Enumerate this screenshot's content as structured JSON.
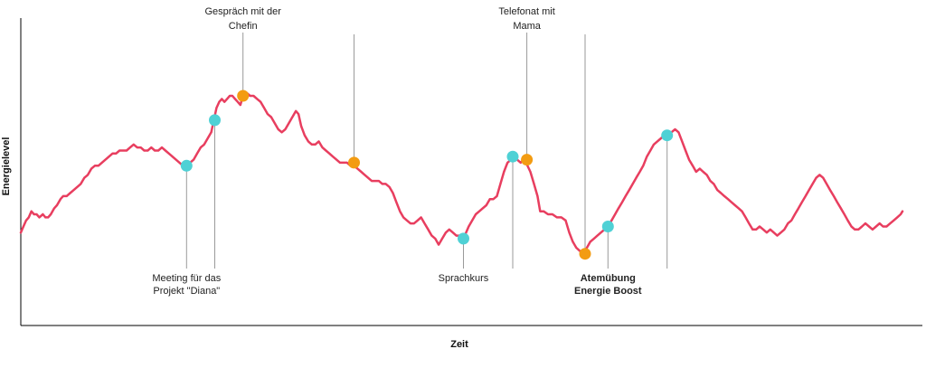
{
  "chart_data": {
    "type": "line",
    "title": "",
    "xlabel": "Zeit",
    "ylabel": "Energielevel",
    "xlim": [
      0,
      100
    ],
    "ylim": [
      0,
      100
    ],
    "grid": false,
    "series": [
      {
        "color": "#e83e5f",
        "points": [
          [
            0.0,
            30
          ],
          [
            0.3,
            32
          ],
          [
            0.6,
            34
          ],
          [
            0.9,
            35
          ],
          [
            1.2,
            37
          ],
          [
            1.5,
            36
          ],
          [
            1.8,
            36
          ],
          [
            2.1,
            35
          ],
          [
            2.5,
            36
          ],
          [
            2.8,
            35
          ],
          [
            3.1,
            35
          ],
          [
            3.4,
            36
          ],
          [
            3.8,
            38
          ],
          [
            4.1,
            39
          ],
          [
            4.5,
            41
          ],
          [
            4.8,
            42
          ],
          [
            5.2,
            42
          ],
          [
            5.6,
            43
          ],
          [
            6.0,
            44
          ],
          [
            6.4,
            45
          ],
          [
            6.8,
            46
          ],
          [
            7.2,
            48
          ],
          [
            7.6,
            49
          ],
          [
            8.0,
            51
          ],
          [
            8.4,
            52
          ],
          [
            8.8,
            52
          ],
          [
            9.2,
            53
          ],
          [
            9.6,
            54
          ],
          [
            10.0,
            55
          ],
          [
            10.4,
            56
          ],
          [
            10.8,
            56
          ],
          [
            11.2,
            57
          ],
          [
            11.6,
            57
          ],
          [
            12.0,
            57
          ],
          [
            12.4,
            58
          ],
          [
            12.8,
            59
          ],
          [
            13.2,
            58
          ],
          [
            13.6,
            58
          ],
          [
            14.0,
            57
          ],
          [
            14.4,
            57
          ],
          [
            14.8,
            58
          ],
          [
            15.2,
            57
          ],
          [
            15.6,
            57
          ],
          [
            16.0,
            58
          ],
          [
            16.4,
            57
          ],
          [
            16.8,
            56
          ],
          [
            17.2,
            55
          ],
          [
            17.6,
            54
          ],
          [
            18.0,
            53
          ],
          [
            18.4,
            52
          ],
          [
            18.8,
            52
          ],
          [
            19.2,
            53
          ],
          [
            19.6,
            54
          ],
          [
            20.0,
            56
          ],
          [
            20.4,
            58
          ],
          [
            20.8,
            59
          ],
          [
            21.2,
            61
          ],
          [
            21.6,
            63
          ],
          [
            21.9,
            67
          ],
          [
            22.2,
            71
          ],
          [
            22.5,
            73
          ],
          [
            22.8,
            74
          ],
          [
            23.1,
            73
          ],
          [
            23.4,
            74
          ],
          [
            23.7,
            75
          ],
          [
            24.0,
            75
          ],
          [
            24.3,
            74
          ],
          [
            24.6,
            73
          ],
          [
            24.9,
            72
          ],
          [
            25.2,
            75
          ],
          [
            25.6,
            76
          ],
          [
            26.0,
            75
          ],
          [
            26.4,
            75
          ],
          [
            26.8,
            74
          ],
          [
            27.2,
            73
          ],
          [
            27.6,
            71
          ],
          [
            28.0,
            69
          ],
          [
            28.4,
            68
          ],
          [
            28.8,
            66
          ],
          [
            29.2,
            64
          ],
          [
            29.6,
            63
          ],
          [
            30.0,
            64
          ],
          [
            30.4,
            66
          ],
          [
            30.8,
            68
          ],
          [
            31.2,
            70
          ],
          [
            31.5,
            69
          ],
          [
            31.8,
            65
          ],
          [
            32.2,
            62
          ],
          [
            32.6,
            60
          ],
          [
            33.0,
            59
          ],
          [
            33.4,
            59
          ],
          [
            33.8,
            60
          ],
          [
            34.2,
            58
          ],
          [
            34.6,
            57
          ],
          [
            35.0,
            56
          ],
          [
            35.4,
            55
          ],
          [
            35.8,
            54
          ],
          [
            36.2,
            53
          ],
          [
            36.6,
            53
          ],
          [
            37.0,
            53
          ],
          [
            37.4,
            52
          ],
          [
            37.8,
            52
          ],
          [
            38.2,
            51
          ],
          [
            38.6,
            50
          ],
          [
            39.0,
            49
          ],
          [
            39.4,
            48
          ],
          [
            39.8,
            47
          ],
          [
            40.2,
            47
          ],
          [
            40.6,
            47
          ],
          [
            41.0,
            46
          ],
          [
            41.4,
            46
          ],
          [
            41.8,
            45
          ],
          [
            42.2,
            43
          ],
          [
            42.6,
            40
          ],
          [
            43.0,
            37
          ],
          [
            43.4,
            35
          ],
          [
            43.8,
            34
          ],
          [
            44.2,
            33
          ],
          [
            44.6,
            33
          ],
          [
            45.0,
            34
          ],
          [
            45.4,
            35
          ],
          [
            45.8,
            33
          ],
          [
            46.2,
            31
          ],
          [
            46.6,
            29
          ],
          [
            47.0,
            28
          ],
          [
            47.4,
            26
          ],
          [
            47.8,
            28
          ],
          [
            48.2,
            30
          ],
          [
            48.6,
            31
          ],
          [
            49.0,
            30
          ],
          [
            49.4,
            29
          ],
          [
            49.8,
            29
          ],
          [
            50.2,
            28
          ],
          [
            50.5,
            30
          ],
          [
            50.8,
            32
          ],
          [
            51.2,
            34
          ],
          [
            51.6,
            36
          ],
          [
            52.0,
            37
          ],
          [
            52.4,
            38
          ],
          [
            52.8,
            39
          ],
          [
            53.2,
            41
          ],
          [
            53.6,
            41
          ],
          [
            54.0,
            42
          ],
          [
            54.4,
            46
          ],
          [
            54.8,
            50
          ],
          [
            55.2,
            53
          ],
          [
            55.6,
            54
          ],
          [
            55.9,
            55
          ],
          [
            56.3,
            54
          ],
          [
            56.7,
            53
          ],
          [
            57.0,
            54
          ],
          [
            57.3,
            53
          ],
          [
            57.8,
            50
          ],
          [
            58.2,
            46
          ],
          [
            58.6,
            42
          ],
          [
            58.9,
            37
          ],
          [
            59.3,
            37
          ],
          [
            59.8,
            36
          ],
          [
            60.3,
            36
          ],
          [
            60.8,
            35
          ],
          [
            61.3,
            35
          ],
          [
            61.8,
            34
          ],
          [
            62.2,
            30
          ],
          [
            62.6,
            27
          ],
          [
            63.0,
            25
          ],
          [
            63.4,
            24
          ],
          [
            63.8,
            23
          ],
          [
            64.2,
            25
          ],
          [
            64.6,
            27
          ],
          [
            65.0,
            28
          ],
          [
            65.4,
            29
          ],
          [
            65.8,
            30
          ],
          [
            66.2,
            31
          ],
          [
            66.6,
            32
          ],
          [
            67.0,
            34
          ],
          [
            67.4,
            36
          ],
          [
            67.8,
            38
          ],
          [
            68.2,
            40
          ],
          [
            68.6,
            42
          ],
          [
            69.0,
            44
          ],
          [
            69.4,
            46
          ],
          [
            69.8,
            48
          ],
          [
            70.2,
            50
          ],
          [
            70.6,
            52
          ],
          [
            71.0,
            55
          ],
          [
            71.4,
            57
          ],
          [
            71.8,
            59
          ],
          [
            72.2,
            60
          ],
          [
            72.6,
            61
          ],
          [
            73.0,
            62
          ],
          [
            73.4,
            63
          ],
          [
            73.8,
            63
          ],
          [
            74.2,
            64
          ],
          [
            74.6,
            63
          ],
          [
            75.0,
            60
          ],
          [
            75.4,
            57
          ],
          [
            75.8,
            54
          ],
          [
            76.2,
            52
          ],
          [
            76.6,
            50
          ],
          [
            77.0,
            51
          ],
          [
            77.4,
            50
          ],
          [
            77.8,
            49
          ],
          [
            78.2,
            47
          ],
          [
            78.6,
            46
          ],
          [
            79.0,
            44
          ],
          [
            79.4,
            43
          ],
          [
            79.8,
            42
          ],
          [
            80.2,
            41
          ],
          [
            80.6,
            40
          ],
          [
            81.0,
            39
          ],
          [
            81.4,
            38
          ],
          [
            81.8,
            37
          ],
          [
            82.2,
            35
          ],
          [
            82.6,
            33
          ],
          [
            83.0,
            31
          ],
          [
            83.4,
            31
          ],
          [
            83.8,
            32
          ],
          [
            84.2,
            31
          ],
          [
            84.6,
            30
          ],
          [
            85.0,
            31
          ],
          [
            85.4,
            30
          ],
          [
            85.8,
            29
          ],
          [
            86.2,
            30
          ],
          [
            86.6,
            31
          ],
          [
            87.0,
            33
          ],
          [
            87.4,
            34
          ],
          [
            87.8,
            36
          ],
          [
            88.2,
            38
          ],
          [
            88.6,
            40
          ],
          [
            89.0,
            42
          ],
          [
            89.4,
            44
          ],
          [
            89.8,
            46
          ],
          [
            90.2,
            48
          ],
          [
            90.6,
            49
          ],
          [
            91.0,
            48
          ],
          [
            91.4,
            46
          ],
          [
            91.8,
            44
          ],
          [
            92.2,
            42
          ],
          [
            92.6,
            40
          ],
          [
            93.0,
            38
          ],
          [
            93.4,
            36
          ],
          [
            93.8,
            34
          ],
          [
            94.2,
            32
          ],
          [
            94.6,
            31
          ],
          [
            95.0,
            31
          ],
          [
            95.4,
            32
          ],
          [
            95.8,
            33
          ],
          [
            96.2,
            32
          ],
          [
            96.6,
            31
          ],
          [
            97.0,
            32
          ],
          [
            97.4,
            33
          ],
          [
            97.8,
            32
          ],
          [
            98.2,
            32
          ],
          [
            98.6,
            33
          ],
          [
            99.0,
            34
          ],
          [
            99.4,
            35
          ],
          [
            99.8,
            36
          ],
          [
            100.0,
            37
          ]
        ]
      }
    ],
    "annotations": [
      {
        "lines": [
          "Meeting für das",
          "Projekt \"Diana\""
        ],
        "x": 18.8,
        "y": 52,
        "marker_color": "#4fd1d5",
        "text_position": "below",
        "highlight": false
      },
      {
        "lines": [],
        "x": 22.0,
        "y": 67,
        "marker_color": "#4fd1d5",
        "text_position": "below",
        "highlight": false
      },
      {
        "lines": [
          "Gespräch mit der",
          "Chefin"
        ],
        "x": 25.2,
        "y": 75,
        "marker_color": "#f39c12",
        "text_position": "above",
        "highlight": false
      },
      {
        "lines": [],
        "x": 37.8,
        "y": 53,
        "marker_color": "#f39c12",
        "text_position": "above",
        "highlight": false
      },
      {
        "lines": [
          "Sprachkurs"
        ],
        "x": 50.2,
        "y": 28,
        "marker_color": "#4fd1d5",
        "text_position": "below",
        "highlight": false
      },
      {
        "lines": [],
        "x": 55.8,
        "y": 55,
        "marker_color": "#4fd1d5",
        "text_position": "below",
        "highlight": false
      },
      {
        "lines": [
          "Telefonat mit",
          "Mama"
        ],
        "x": 57.4,
        "y": 54,
        "marker_color": "#f39c12",
        "text_position": "above",
        "highlight": false
      },
      {
        "lines": [],
        "x": 64.0,
        "y": 23,
        "marker_color": "#f39c12",
        "text_position": "above",
        "highlight": false
      },
      {
        "lines": [
          "Atemübung",
          "Energie Boost"
        ],
        "x": 66.6,
        "y": 32,
        "marker_color": "#4fd1d5",
        "text_position": "below",
        "highlight": true
      },
      {
        "lines": [],
        "x": 73.3,
        "y": 62,
        "marker_color": "#4fd1d5",
        "text_position": "below",
        "highlight": false
      }
    ],
    "annotation_highlight_color": "#2bb0bd"
  }
}
